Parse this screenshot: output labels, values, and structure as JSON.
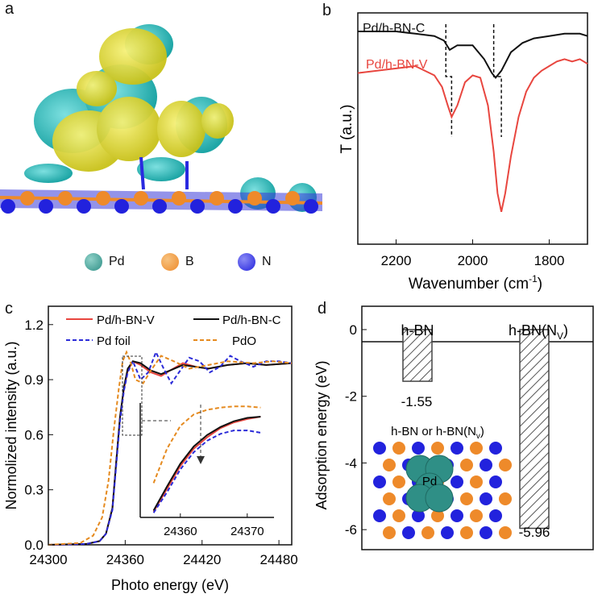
{
  "panel_labels": {
    "a": "a",
    "b": "b",
    "c": "c",
    "d": "d"
  },
  "panel_a": {
    "legend": [
      {
        "label": "Pd",
        "color": "#2f8f86"
      },
      {
        "label": "B",
        "color": "#ee8a2a"
      },
      {
        "label": "N",
        "color": "#2222dd"
      }
    ],
    "colors": {
      "yellow": "#e6df2c",
      "cyan": "#33c2c2"
    }
  },
  "chart_data": [
    {
      "id": "b",
      "type": "line",
      "xlabel": "Wavenumber (cm",
      "xlabel_sup": "-1",
      "xlabel_close": ")",
      "ylabel": "T (a.u.)",
      "xlim": [
        2300,
        1700
      ],
      "xticks": [
        "2200",
        "2000",
        "1800"
      ],
      "xtick_values": [
        2200,
        2000,
        1800
      ],
      "series": [
        {
          "name": "Pd/h-BN-C",
          "color": "#111111",
          "x": [
            2300,
            2200,
            2150,
            2100,
            2075,
            2060,
            2040,
            2000,
            1970,
            1950,
            1940,
            1925,
            1900,
            1870,
            1840,
            1800,
            1760,
            1720,
            1700
          ],
          "y": [
            0.92,
            0.92,
            0.91,
            0.9,
            0.88,
            0.84,
            0.86,
            0.86,
            0.8,
            0.74,
            0.72,
            0.75,
            0.83,
            0.87,
            0.89,
            0.9,
            0.91,
            0.91,
            0.9
          ]
        },
        {
          "name": "Pd/h-BN-V",
          "color": "#e8463f",
          "x": [
            2300,
            2200,
            2150,
            2100,
            2080,
            2065,
            2055,
            2040,
            2020,
            2000,
            1980,
            1960,
            1945,
            1935,
            1925,
            1915,
            1900,
            1880,
            1860,
            1840,
            1820,
            1800,
            1780,
            1760,
            1740,
            1720,
            1700
          ],
          "y": [
            0.74,
            0.76,
            0.77,
            0.73,
            0.68,
            0.6,
            0.55,
            0.6,
            0.7,
            0.73,
            0.72,
            0.6,
            0.4,
            0.22,
            0.14,
            0.22,
            0.38,
            0.55,
            0.66,
            0.72,
            0.75,
            0.77,
            0.79,
            0.8,
            0.79,
            0.8,
            0.78
          ]
        }
      ],
      "guides": [
        {
          "x_top": 2070,
          "x_bottom": 2055
        },
        {
          "x_top": 1945,
          "x_bottom": 1925
        }
      ]
    },
    {
      "id": "c",
      "type": "line",
      "xlabel": "Photo energy (eV)",
      "ylabel": "Normolized intensity (a.u.)",
      "xlim": [
        24300,
        24490
      ],
      "ylim": [
        0,
        1.3
      ],
      "xticks": [
        "24300",
        "24360",
        "24420",
        "24480"
      ],
      "xtick_values": [
        24300,
        24360,
        24420,
        24480
      ],
      "yticks": [
        "0.0",
        "0.3",
        "0.6",
        "0.9",
        "1.2"
      ],
      "ytick_values": [
        0,
        0.3,
        0.6,
        0.9,
        1.2
      ],
      "series": [
        {
          "name": "Pd/h-BN-V",
          "color": "#e8463f",
          "dash": "",
          "x": [
            24300,
            24330,
            24340,
            24345,
            24350,
            24353,
            24356,
            24359,
            24362,
            24366,
            24372,
            24380,
            24388,
            24395,
            24405,
            24415,
            24425,
            24440,
            24455,
            24470,
            24490
          ],
          "y": [
            0,
            0.005,
            0.02,
            0.06,
            0.2,
            0.45,
            0.7,
            0.85,
            0.95,
            1.0,
            0.98,
            0.94,
            0.92,
            0.95,
            0.99,
            0.97,
            0.96,
            0.98,
            0.99,
            0.98,
            0.99
          ]
        },
        {
          "name": "Pd/h-BN-C",
          "color": "#111111",
          "dash": "",
          "x": [
            24300,
            24330,
            24340,
            24345,
            24350,
            24353,
            24356,
            24359,
            24362,
            24366,
            24372,
            24380,
            24388,
            24395,
            24405,
            24415,
            24425,
            24440,
            24455,
            24470,
            24490
          ],
          "y": [
            0,
            0.005,
            0.02,
            0.06,
            0.2,
            0.45,
            0.7,
            0.86,
            0.96,
            1.0,
            0.99,
            0.95,
            0.93,
            0.95,
            0.98,
            0.97,
            0.96,
            0.98,
            0.99,
            0.98,
            0.99
          ]
        },
        {
          "name": "Pd foil",
          "color": "#2b2bd8",
          "dash": "5,3",
          "x": [
            24300,
            24330,
            24340,
            24345,
            24350,
            24353,
            24356,
            24359,
            24362,
            24366,
            24372,
            24378,
            24384,
            24390,
            24396,
            24402,
            24410,
            24418,
            24426,
            24434,
            24442,
            24450,
            24460,
            24470,
            24480,
            24490
          ],
          "y": [
            0,
            0.005,
            0.02,
            0.06,
            0.19,
            0.43,
            0.68,
            0.84,
            0.94,
            1.0,
            0.9,
            0.94,
            1.05,
            0.96,
            0.88,
            0.94,
            1.02,
            1.0,
            0.94,
            0.97,
            1.03,
            1.0,
            0.97,
            1.0,
            1.0,
            0.99
          ]
        },
        {
          "name": "PdO",
          "color": "#e58a1f",
          "dash": "5,3",
          "x": [
            24300,
            24325,
            24335,
            24342,
            24347,
            24351,
            24355,
            24358,
            24361,
            24364,
            24368,
            24374,
            24380,
            24388,
            24398,
            24410,
            24425,
            24440,
            24460,
            24475,
            24490
          ],
          "y": [
            0,
            0.01,
            0.05,
            0.15,
            0.35,
            0.62,
            0.85,
            1.0,
            1.05,
            1.0,
            0.9,
            0.88,
            0.95,
            1.03,
            1.0,
            0.96,
            0.98,
            1.0,
            0.99,
            1.0,
            0.99
          ]
        }
      ],
      "inset": {
        "xlim": [
          24354,
          24374
        ],
        "xticks": [
          "24360",
          "24370"
        ],
        "xtick_values": [
          24360,
          24370
        ],
        "series": [
          {
            "name": "Pd/h-BN-V",
            "color": "#e8463f",
            "dash": "",
            "x": [
              24356,
              24358,
              24360,
              24362,
              24364,
              24366,
              24368,
              24370,
              24372
            ],
            "y": [
              0.05,
              0.25,
              0.45,
              0.6,
              0.7,
              0.78,
              0.83,
              0.86,
              0.88
            ]
          },
          {
            "name": "Pd/h-BN-C",
            "color": "#111111",
            "dash": "",
            "x": [
              24356,
              24358,
              24360,
              24362,
              24364,
              24366,
              24368,
              24370,
              24372
            ],
            "y": [
              0.06,
              0.27,
              0.47,
              0.62,
              0.72,
              0.79,
              0.84,
              0.87,
              0.88
            ]
          },
          {
            "name": "Pd foil",
            "color": "#2b2bd8",
            "dash": "5,3",
            "x": [
              24356,
              24358,
              24360,
              24362,
              24364,
              24366,
              24368,
              24370,
              24372
            ],
            "y": [
              0.04,
              0.22,
              0.42,
              0.57,
              0.67,
              0.73,
              0.76,
              0.76,
              0.74
            ]
          },
          {
            "name": "PdO",
            "color": "#e58a1f",
            "dash": "5,3",
            "x": [
              24356,
              24358,
              24360,
              24362,
              24364,
              24366,
              24368,
              24370,
              24372
            ],
            "y": [
              0.3,
              0.6,
              0.8,
              0.9,
              0.94,
              0.96,
              0.97,
              0.97,
              0.96
            ]
          }
        ]
      }
    },
    {
      "id": "d",
      "type": "bar",
      "ylabel": "Adsorption energy (eV)",
      "ylim": [
        -6.6,
        0.7
      ],
      "yticks": [
        "0",
        "-2",
        "-4",
        "-6"
      ],
      "ytick_values": [
        0,
        -2,
        -4,
        -6
      ],
      "categories": [
        "h-BN",
        "h-BN(N"
      ],
      "category_subscripts": [
        "",
        "V"
      ],
      "category_suffix": [
        "",
        ")"
      ],
      "values": [
        -1.55,
        -5.96
      ],
      "value_labels": [
        "-1.55",
        "-5.96"
      ],
      "inset_label": "h-BN or h-BN(N",
      "inset_label_sub": "v",
      "inset_label_close": ")",
      "inset_atom_label": "Pd"
    }
  ]
}
